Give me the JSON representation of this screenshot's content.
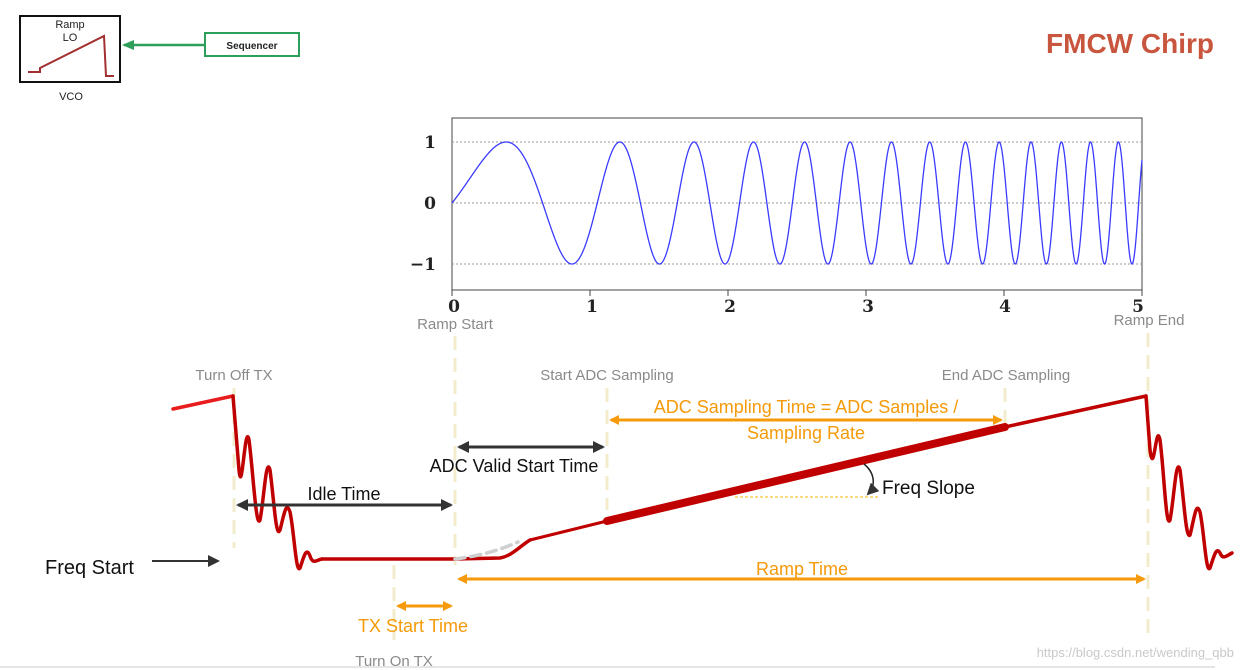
{
  "title": "FMCW Chirp",
  "vco_block": {
    "ramp_label_1": "Ramp",
    "ramp_label_2": "LO",
    "caption": "VCO",
    "sequencer_label": "Sequencer"
  },
  "waveform": {
    "y_ticks": [
      "1",
      "0",
      "−1"
    ],
    "x_ticks": [
      "0",
      "1",
      "2",
      "3",
      "4",
      "5"
    ],
    "x_range": [
      0,
      5
    ],
    "y_range": [
      -1,
      1
    ],
    "colors": {
      "signal": "#3b3bff",
      "grid": "#9a9a9a"
    }
  },
  "markers": {
    "ramp_start": "Ramp Start",
    "ramp_end": "Ramp End",
    "turn_off_tx": "Turn Off TX",
    "start_adc": "Start ADC Sampling",
    "end_adc": "End ADC Sampling",
    "turn_on_tx": "Turn On TX"
  },
  "annotations": {
    "adc_sampling_time_1": "ADC Sampling Time = ADC Samples /",
    "adc_sampling_time_2": "Sampling Rate",
    "adc_valid_start": "ADC Valid Start Time",
    "idle_time": "Idle Time",
    "freq_slope": "Freq Slope",
    "freq_start": "Freq Start",
    "ramp_time": "Ramp Time",
    "tx_start_time": "TX Start Time"
  },
  "watermark": "https://blog.csdn.net/wending_qbb",
  "colors": {
    "ramp": "#c00000",
    "orange_arrow": "#f59a0a",
    "dark_arrow": "#333333",
    "title": "#c8553d",
    "sequencer_border": "#2e9e5b"
  }
}
